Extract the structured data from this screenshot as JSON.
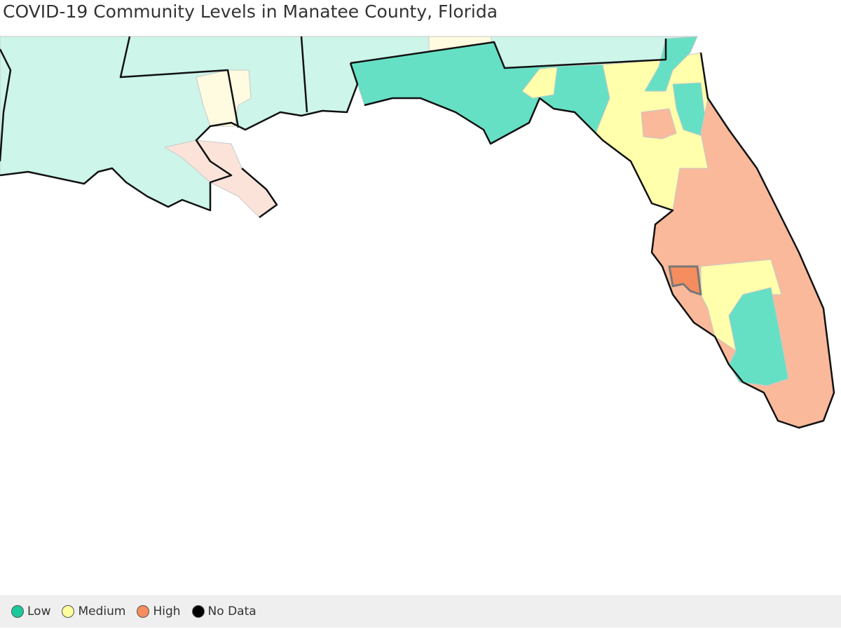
{
  "header": {
    "title": "COVID-19 Community Levels in Manatee County, Florida"
  },
  "legend": {
    "items": [
      {
        "label": "Low",
        "color": "#1bc99a"
      },
      {
        "label": "Medium",
        "color": "#ffff9e"
      },
      {
        "label": "High",
        "color": "#f58d5e"
      },
      {
        "label": "No Data",
        "color": "#000000"
      }
    ]
  }
}
